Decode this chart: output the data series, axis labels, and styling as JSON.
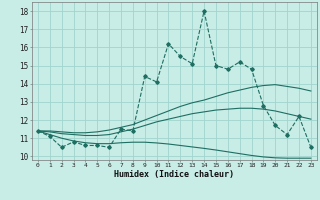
{
  "xlabel": "Humidex (Indice chaleur)",
  "bg_color": "#c8ece6",
  "grid_color": "#a0d4cc",
  "line_color": "#1e6e62",
  "x": [
    0,
    1,
    2,
    3,
    4,
    5,
    6,
    7,
    8,
    9,
    10,
    11,
    12,
    13,
    14,
    15,
    16,
    17,
    18,
    19,
    20,
    21,
    22,
    23
  ],
  "y_dashed": [
    11.4,
    11.1,
    10.5,
    10.8,
    10.6,
    10.6,
    10.5,
    11.5,
    11.4,
    14.4,
    14.1,
    16.2,
    15.5,
    15.1,
    18.0,
    15.0,
    14.8,
    15.2,
    14.8,
    12.8,
    11.7,
    11.2,
    12.2,
    10.5
  ],
  "y_line1": [
    11.4,
    11.4,
    11.35,
    11.3,
    11.3,
    11.35,
    11.45,
    11.6,
    11.75,
    12.0,
    12.25,
    12.5,
    12.75,
    12.95,
    13.1,
    13.3,
    13.5,
    13.65,
    13.8,
    13.9,
    13.95,
    13.85,
    13.75,
    13.6
  ],
  "y_line2": [
    11.4,
    11.35,
    11.25,
    11.2,
    11.15,
    11.15,
    11.2,
    11.35,
    11.5,
    11.7,
    11.9,
    12.05,
    12.2,
    12.35,
    12.45,
    12.55,
    12.6,
    12.65,
    12.65,
    12.6,
    12.5,
    12.35,
    12.2,
    12.05
  ],
  "y_line3": [
    11.4,
    11.2,
    11.0,
    10.85,
    10.75,
    10.7,
    10.7,
    10.75,
    10.78,
    10.78,
    10.74,
    10.68,
    10.6,
    10.52,
    10.44,
    10.35,
    10.25,
    10.15,
    10.05,
    9.97,
    9.92,
    9.9,
    9.9,
    9.9
  ],
  "ylim": [
    9.8,
    18.5
  ],
  "xlim": [
    -0.5,
    23.5
  ],
  "yticks": [
    10,
    11,
    12,
    13,
    14,
    15,
    16,
    17,
    18
  ],
  "xticks": [
    0,
    1,
    2,
    3,
    4,
    5,
    6,
    7,
    8,
    9,
    10,
    11,
    12,
    13,
    14,
    15,
    16,
    17,
    18,
    19,
    20,
    21,
    22,
    23
  ]
}
